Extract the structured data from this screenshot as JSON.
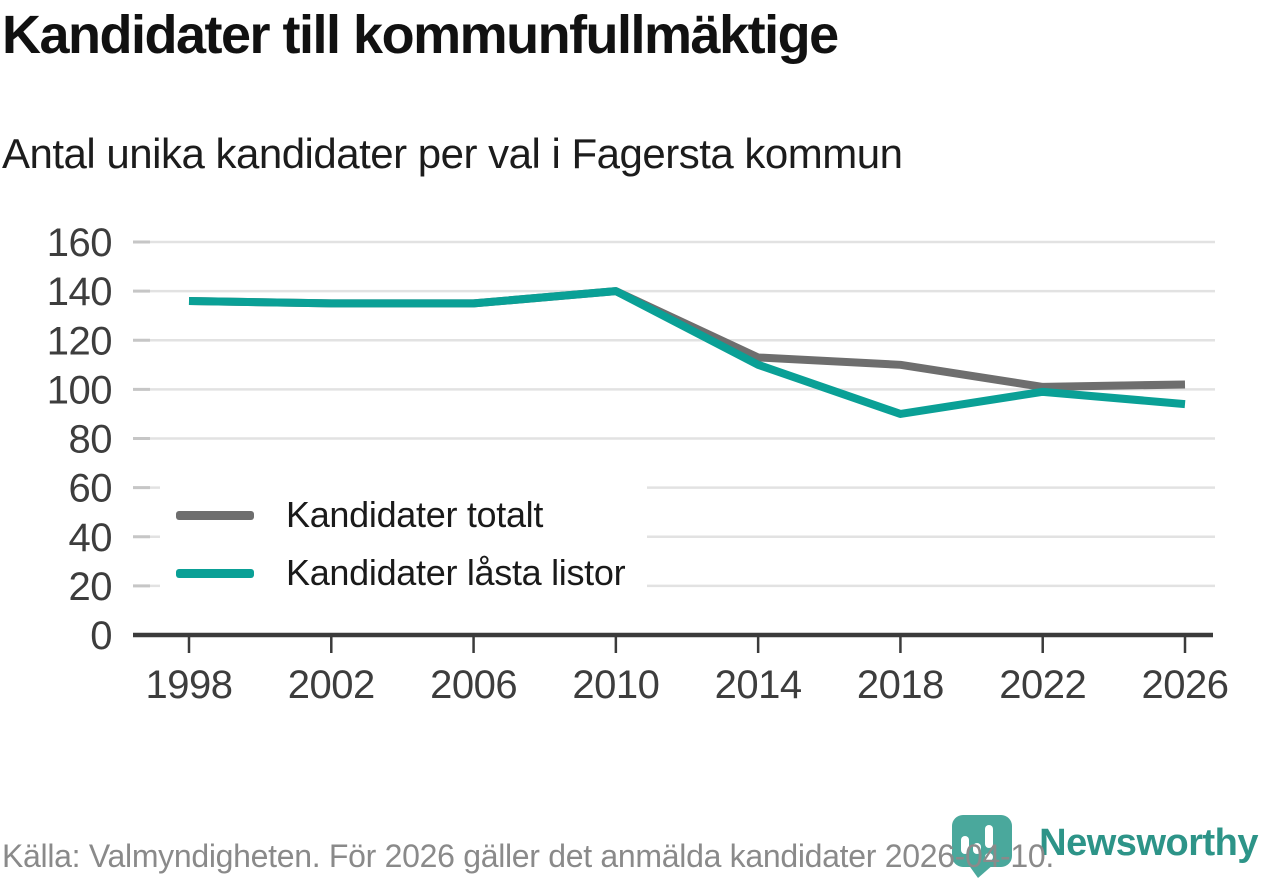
{
  "header": {
    "title": "Kandidater till kommunfullmäktige",
    "subtitle": "Antal unika kandidater per val i Fagersta kommun"
  },
  "chart_data": {
    "type": "line",
    "title": "Kandidater till kommunfullmäktige",
    "subtitle": "Antal unika kandidater per val i Fagersta kommun",
    "categories": [
      "1998",
      "2002",
      "2006",
      "2010",
      "2014",
      "2018",
      "2022",
      "2026"
    ],
    "series": [
      {
        "name": "Kandidater totalt",
        "color": "#6e6e6e",
        "values": [
          136,
          135,
          135,
          140,
          113,
          110,
          101,
          102
        ]
      },
      {
        "name": "Kandidater låsta listor",
        "color": "#0aa096",
        "values": [
          136,
          135,
          135,
          140,
          110,
          90,
          99,
          94
        ]
      }
    ],
    "xlabel": "",
    "ylabel": "",
    "ylim": [
      0,
      160
    ],
    "yticks": [
      0,
      20,
      40,
      60,
      80,
      100,
      120,
      140,
      160
    ],
    "grid": "horizontal",
    "legend_position": "inside-bottom-left"
  },
  "footer": {
    "source": "Källa: Valmyndigheten. För 2026 gäller det anmälda kandidater 2026-04-10.",
    "brand": "Newsworthy"
  },
  "colors": {
    "accent_teal": "#0aa096",
    "series_gray": "#6e6e6e",
    "grid": "#e2e2e2",
    "y_tick": "#c6c6c6",
    "axis": "#3b3b3b",
    "axis_text": "#3d3d3d",
    "title_text": "#111111",
    "source_text": "#8a8a8a",
    "logo_bubble": "#4aa89c",
    "brand_text": "#2d9488"
  }
}
